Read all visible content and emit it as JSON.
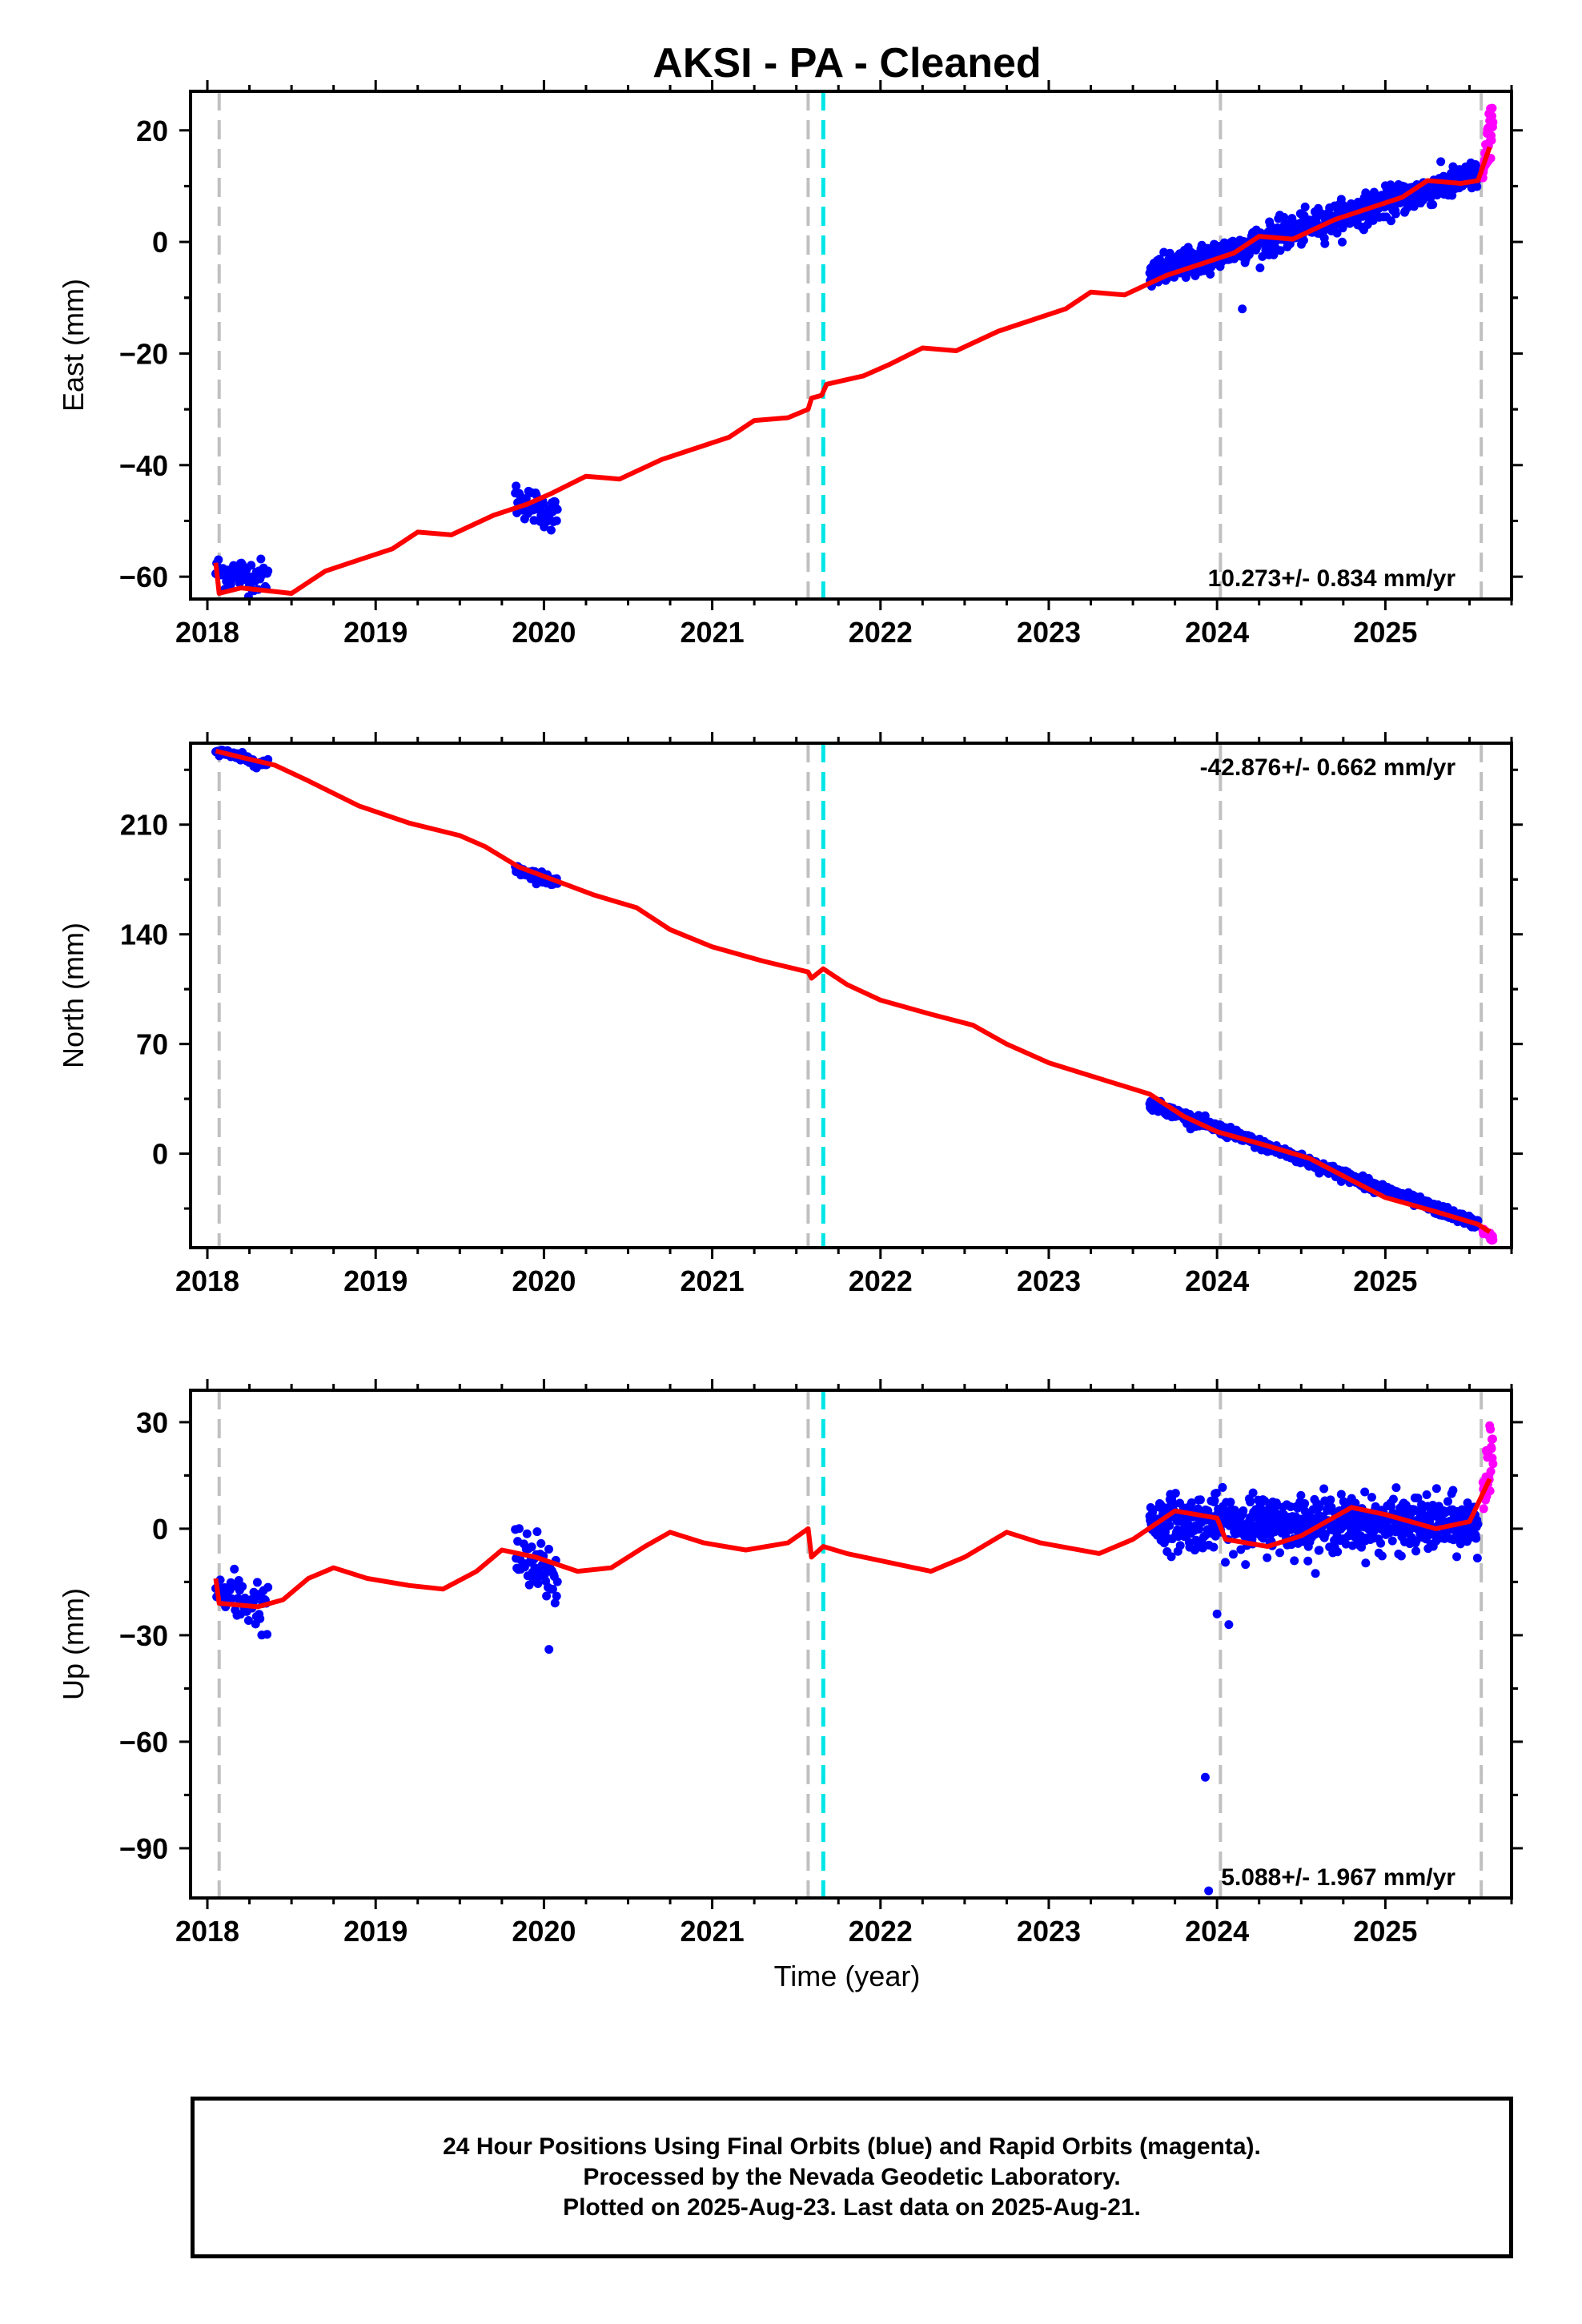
{
  "title": "AKSI  - PA - Cleaned",
  "xlabel": "Time (year)",
  "footer": {
    "line1": "24 Hour Positions Using Final Orbits (blue) and Rapid Orbits (magenta).",
    "line2": "Processed by the Nevada Geodetic Laboratory.",
    "line3": "Plotted on 2025-Aug-23. Last data on 2025-Aug-21."
  },
  "colors": {
    "final_orbits": "#0000ff",
    "rapid_orbits": "#ff00ff",
    "model": "#ff0000",
    "gray_events": "#c0c0c0",
    "cyan_events": "#00e5e5"
  },
  "chart_data": [
    {
      "type": "scatter",
      "component": "East",
      "ylabel": "East (mm)",
      "rate_label": "10.273+/- 0.834 mm/yr",
      "rate_position": "bottom-right",
      "xlim": [
        2017.9,
        2025.75
      ],
      "ylim": [
        -64,
        27
      ],
      "xticks": [
        2018,
        2019,
        2020,
        2021,
        2022,
        2023,
        2024,
        2025
      ],
      "yticks": [
        -60,
        -40,
        -20,
        0,
        20
      ],
      "ytick_labels": [
        "−60",
        "−40",
        "−20",
        "0",
        "20"
      ],
      "gray_event_lines": [
        2018.07,
        2021.57,
        2024.02,
        2025.57
      ],
      "cyan_event_lines": [
        2021.66
      ],
      "final_segments": [
        {
          "start": 2018.05,
          "end": 2018.36,
          "level_start": -59,
          "level_end": -60,
          "scatter": 2.0,
          "n": 60
        },
        {
          "start": 2019.83,
          "end": 2020.08,
          "level_start": -46,
          "level_end": -49,
          "scatter": 2.0,
          "n": 55
        },
        {
          "start": 2023.6,
          "end": 2025.55,
          "level_start": -6,
          "level_end": 12,
          "scatter": 1.8,
          "n": 700
        }
      ],
      "outliers": [
        [
          2024.15,
          -12
        ]
      ],
      "rapid_segment": {
        "start": 2025.58,
        "end": 2025.64,
        "level_start": 12,
        "level_end": 23,
        "scatter": 3.5,
        "n": 28
      },
      "model_line": [
        [
          2018.05,
          -57.5
        ],
        [
          2018.07,
          -63
        ],
        [
          2018.2,
          -62
        ],
        [
          2018.35,
          -62.5
        ],
        [
          2018.5,
          -63
        ],
        [
          2018.7,
          -59
        ],
        [
          2018.9,
          -57
        ],
        [
          2019.1,
          -55
        ],
        [
          2019.25,
          -52
        ],
        [
          2019.45,
          -52.5
        ],
        [
          2019.7,
          -49
        ],
        [
          2019.9,
          -47
        ],
        [
          2020.05,
          -45
        ],
        [
          2020.25,
          -42
        ],
        [
          2020.45,
          -42.5
        ],
        [
          2020.7,
          -39
        ],
        [
          2020.9,
          -37
        ],
        [
          2021.1,
          -35
        ],
        [
          2021.25,
          -32
        ],
        [
          2021.45,
          -31.5
        ],
        [
          2021.57,
          -30
        ],
        [
          2021.59,
          -28
        ],
        [
          2021.65,
          -27.5
        ],
        [
          2021.68,
          -25.5
        ],
        [
          2021.9,
          -24
        ],
        [
          2022.05,
          -22
        ],
        [
          2022.25,
          -19
        ],
        [
          2022.45,
          -19.5
        ],
        [
          2022.7,
          -16
        ],
        [
          2022.9,
          -14
        ],
        [
          2023.1,
          -12
        ],
        [
          2023.25,
          -9
        ],
        [
          2023.45,
          -9.5
        ],
        [
          2023.7,
          -6
        ],
        [
          2023.9,
          -4
        ],
        [
          2024.1,
          -2
        ],
        [
          2024.25,
          1
        ],
        [
          2024.45,
          0.5
        ],
        [
          2024.7,
          4
        ],
        [
          2024.9,
          6
        ],
        [
          2025.1,
          8
        ],
        [
          2025.25,
          11
        ],
        [
          2025.45,
          10.5
        ],
        [
          2025.55,
          11
        ],
        [
          2025.62,
          17
        ]
      ]
    },
    {
      "type": "scatter",
      "component": "North",
      "ylabel": "North (mm)",
      "rate_label": "-42.876+/- 0.662 mm/yr",
      "rate_position": "top-right",
      "xlim": [
        2017.9,
        2025.75
      ],
      "ylim": [
        -60,
        262
      ],
      "xticks": [
        2018,
        2019,
        2020,
        2021,
        2022,
        2023,
        2024,
        2025
      ],
      "yticks": [
        0,
        70,
        140,
        210
      ],
      "ytick_labels": [
        "0",
        "70",
        "140",
        "210"
      ],
      "gray_event_lines": [
        2018.07,
        2021.57,
        2024.02,
        2025.57
      ],
      "cyan_event_lines": [
        2021.66
      ],
      "final_segments": [
        {
          "start": 2018.05,
          "end": 2018.36,
          "level_start": 257,
          "level_end": 248,
          "scatter": 2.0,
          "n": 60
        },
        {
          "start": 2019.83,
          "end": 2020.08,
          "level_start": 182,
          "level_end": 173,
          "scatter": 2.5,
          "n": 55
        },
        {
          "start": 2023.6,
          "end": 2025.55,
          "level_start": 32,
          "level_end": -45,
          "scatter": 2.2,
          "n": 700
        }
      ],
      "outliers": [],
      "rapid_segment": {
        "start": 2025.58,
        "end": 2025.64,
        "level_start": -49,
        "level_end": -54,
        "scatter": 1.5,
        "n": 28
      },
      "model_line": [
        [
          2018.05,
          257
        ],
        [
          2018.2,
          253
        ],
        [
          2018.4,
          248
        ],
        [
          2018.6,
          238
        ],
        [
          2018.9,
          222
        ],
        [
          2019.2,
          211
        ],
        [
          2019.5,
          203
        ],
        [
          2019.65,
          196
        ],
        [
          2019.85,
          183
        ],
        [
          2020.1,
          173
        ],
        [
          2020.3,
          165
        ],
        [
          2020.55,
          157
        ],
        [
          2020.75,
          143
        ],
        [
          2021.0,
          132
        ],
        [
          2021.3,
          123
        ],
        [
          2021.57,
          116
        ],
        [
          2021.59,
          112
        ],
        [
          2021.66,
          118
        ],
        [
          2021.8,
          108
        ],
        [
          2022.0,
          98
        ],
        [
          2022.3,
          89
        ],
        [
          2022.55,
          82
        ],
        [
          2022.75,
          70
        ],
        [
          2023.0,
          58
        ],
        [
          2023.3,
          48
        ],
        [
          2023.6,
          38
        ],
        [
          2023.8,
          24
        ],
        [
          2024.0,
          14
        ],
        [
          2024.3,
          5
        ],
        [
          2024.55,
          -3
        ],
        [
          2024.8,
          -17
        ],
        [
          2025.0,
          -28
        ],
        [
          2025.3,
          -37
        ],
        [
          2025.55,
          -45
        ],
        [
          2025.62,
          -50
        ]
      ]
    },
    {
      "type": "scatter",
      "component": "Up",
      "ylabel": "Up (mm)",
      "rate_label": "5.088+/- 1.967 mm/yr",
      "rate_position": "bottom-right",
      "xlim": [
        2017.9,
        2025.75
      ],
      "ylim": [
        -104,
        39
      ],
      "xticks": [
        2018,
        2019,
        2020,
        2021,
        2022,
        2023,
        2024,
        2025
      ],
      "yticks": [
        -90,
        -60,
        -30,
        0,
        30
      ],
      "ytick_labels": [
        "−90",
        "−60",
        "−30",
        "0",
        "30"
      ],
      "gray_event_lines": [
        2018.07,
        2021.57,
        2024.02,
        2025.57
      ],
      "cyan_event_lines": [
        2021.66
      ],
      "final_segments": [
        {
          "start": 2018.05,
          "end": 2018.36,
          "level_start": -18,
          "level_end": -22,
          "scatter": 5.0,
          "n": 60
        },
        {
          "start": 2019.83,
          "end": 2020.08,
          "level_start": -8,
          "level_end": -14,
          "scatter": 6.0,
          "n": 55
        },
        {
          "start": 2023.6,
          "end": 2025.55,
          "level_start": 2,
          "level_end": 1,
          "scatter": 5.0,
          "n": 700
        }
      ],
      "outliers": [
        [
          2023.93,
          -70
        ],
        [
          2024.0,
          -24
        ],
        [
          2024.07,
          -27
        ],
        [
          2020.03,
          -34
        ],
        [
          2023.95,
          -102
        ]
      ],
      "rapid_segment": {
        "start": 2025.58,
        "end": 2025.64,
        "level_start": 12,
        "level_end": 18,
        "scatter": 8.0,
        "n": 28
      },
      "model_line": [
        [
          2018.05,
          -14
        ],
        [
          2018.07,
          -21
        ],
        [
          2018.3,
          -22
        ],
        [
          2018.45,
          -20
        ],
        [
          2018.6,
          -14
        ],
        [
          2018.75,
          -11
        ],
        [
          2018.95,
          -14
        ],
        [
          2019.2,
          -16
        ],
        [
          2019.4,
          -17
        ],
        [
          2019.6,
          -12
        ],
        [
          2019.75,
          -6
        ],
        [
          2019.95,
          -8
        ],
        [
          2020.2,
          -12
        ],
        [
          2020.4,
          -11
        ],
        [
          2020.6,
          -5
        ],
        [
          2020.75,
          -1
        ],
        [
          2020.95,
          -4
        ],
        [
          2021.2,
          -6
        ],
        [
          2021.45,
          -4
        ],
        [
          2021.57,
          0
        ],
        [
          2021.59,
          -8
        ],
        [
          2021.66,
          -5
        ],
        [
          2021.8,
          -7
        ],
        [
          2022.0,
          -9
        ],
        [
          2022.3,
          -12
        ],
        [
          2022.5,
          -8
        ],
        [
          2022.75,
          -1
        ],
        [
          2022.95,
          -4
        ],
        [
          2023.3,
          -7
        ],
        [
          2023.5,
          -3
        ],
        [
          2023.75,
          5
        ],
        [
          2024.0,
          3
        ],
        [
          2024.05,
          -3
        ],
        [
          2024.3,
          -5
        ],
        [
          2024.5,
          -2
        ],
        [
          2024.8,
          6
        ],
        [
          2025.0,
          4
        ],
        [
          2025.3,
          0
        ],
        [
          2025.5,
          2
        ],
        [
          2025.62,
          14
        ]
      ]
    }
  ]
}
